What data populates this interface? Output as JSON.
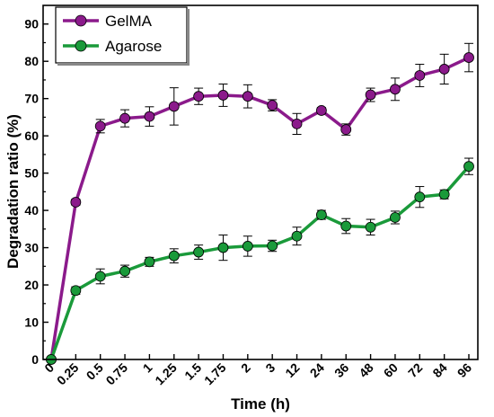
{
  "chart_data": {
    "type": "line",
    "xlabel": "Time (h)",
    "ylabel": "Degradation ratio (%)",
    "ylim": [
      0,
      95
    ],
    "yticks": [
      0,
      10,
      20,
      30,
      40,
      50,
      60,
      70,
      80,
      90
    ],
    "categories": [
      "0",
      "0.25",
      "0.5",
      "0.75",
      "1",
      "1.25",
      "1.5",
      "1.75",
      "2",
      "3",
      "12",
      "24",
      "36",
      "48",
      "60",
      "72",
      "84",
      "96"
    ],
    "legend_position": "top-left",
    "series": [
      {
        "name": "GelMA",
        "color": "#8b1a8b",
        "values": [
          0,
          42.2,
          62.6,
          64.7,
          65.2,
          67.9,
          70.6,
          70.9,
          70.6,
          68.2,
          63.2,
          66.8,
          61.7,
          71.0,
          72.5,
          76.2,
          77.9,
          81.0
        ],
        "errors": [
          0,
          0.8,
          1.8,
          2.3,
          2.6,
          5.0,
          2.2,
          3.0,
          3.1,
          1.5,
          2.8,
          0.8,
          1.5,
          1.8,
          3.0,
          3.0,
          4.0,
          3.8
        ]
      },
      {
        "name": "Agarose",
        "color": "#1a9a3a",
        "values": [
          0,
          18.5,
          22.3,
          23.7,
          26.2,
          27.8,
          28.8,
          30.0,
          30.4,
          30.5,
          33.1,
          38.8,
          35.8,
          35.5,
          38.1,
          43.6,
          44.3,
          51.8
        ],
        "errors": [
          0,
          1.0,
          2.0,
          1.6,
          1.2,
          1.9,
          1.9,
          3.4,
          2.7,
          1.5,
          2.4,
          1.2,
          2.0,
          2.1,
          1.7,
          2.8,
          1.2,
          2.2
        ]
      }
    ]
  }
}
